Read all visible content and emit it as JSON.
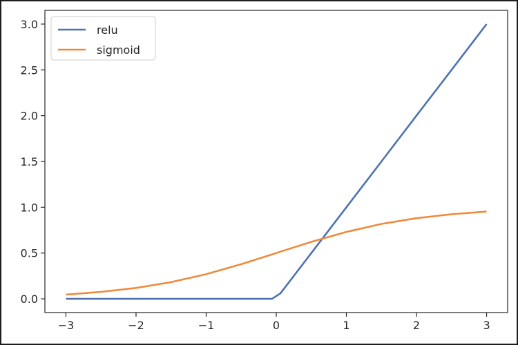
{
  "chart_data": {
    "type": "line",
    "title": "",
    "xlabel": "",
    "ylabel": "",
    "xlim": [
      -3.3,
      3.3
    ],
    "ylim": [
      -0.15,
      3.15
    ],
    "x_ticks": [
      -3,
      -2,
      -1,
      0,
      1,
      2,
      3
    ],
    "x_tick_labels": [
      "−3",
      "−2",
      "−1",
      "0",
      "1",
      "2",
      "3"
    ],
    "y_ticks": [
      0.0,
      0.5,
      1.0,
      1.5,
      2.0,
      2.5,
      3.0
    ],
    "y_tick_labels": [
      "0.0",
      "0.5",
      "1.0",
      "1.5",
      "2.0",
      "2.5",
      "3.0"
    ],
    "grid": false,
    "legend_position": "upper-left",
    "x": [
      -3.0,
      -2.5,
      -2.0,
      -1.5,
      -1.0,
      -0.5,
      -0.06,
      0.06,
      0.5,
      1.0,
      1.5,
      2.0,
      2.5,
      3.0
    ],
    "series": [
      {
        "name": "relu",
        "color": "#4c72b0",
        "values": [
          0,
          0,
          0,
          0,
          0,
          0,
          0,
          0.06,
          0.5,
          1.0,
          1.5,
          2.0,
          2.5,
          3.0
        ]
      },
      {
        "name": "sigmoid",
        "color": "#f0893b",
        "values": [
          0.047,
          0.076,
          0.119,
          0.182,
          0.269,
          0.378,
          0.485,
          0.515,
          0.622,
          0.731,
          0.818,
          0.881,
          0.924,
          0.953
        ]
      }
    ]
  }
}
